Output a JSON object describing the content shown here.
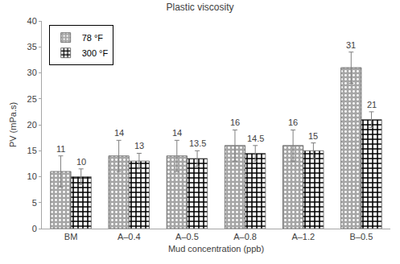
{
  "chart_data": {
    "type": "bar",
    "title": "Plastic viscosity",
    "x_label": "Mud concentration (ppb)",
    "y_label": "PV (mPa.s)",
    "categories": [
      "BM",
      "A–0.4",
      "A–0.5",
      "A–0.8",
      "A–1.2",
      "B–0.5"
    ],
    "series": [
      {
        "name": "78 °F",
        "color": "#a6a6a6",
        "values": [
          11,
          14,
          14,
          16,
          16,
          31
        ],
        "errors": [
          3,
          3,
          3,
          3,
          3,
          3
        ]
      },
      {
        "name": "300 °F",
        "color": "#000000",
        "values": [
          10,
          13,
          13.5,
          14.5,
          15,
          21
        ],
        "errors": [
          1.5,
          1.5,
          1.5,
          1.5,
          1.5,
          1.5
        ]
      }
    ],
    "ylim": [
      0,
      40
    ],
    "yticks": [
      0,
      5,
      10,
      15,
      20,
      25,
      30,
      35,
      40
    ],
    "grid": false,
    "legend": "upper left",
    "data_labels": true
  }
}
